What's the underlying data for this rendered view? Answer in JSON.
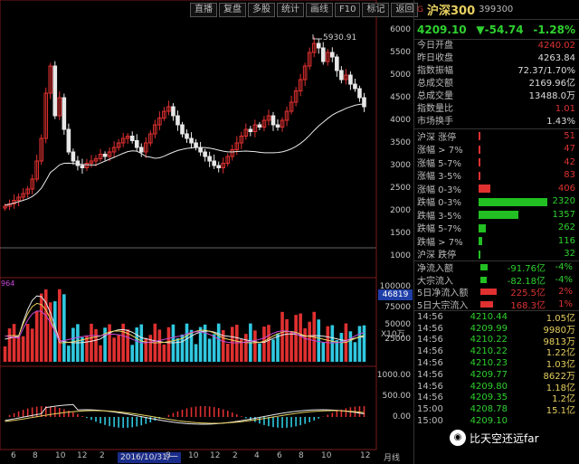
{
  "toolbar": [
    "直播",
    "复盘",
    "多股",
    "统计",
    "画线",
    "F10",
    "标记",
    "返回"
  ],
  "price_axis": [
    "6000",
    "5500",
    "5000",
    "4500",
    "4000",
    "3500",
    "3000",
    "2500",
    "2000",
    "1500",
    "1000"
  ],
  "peak_label": "5930.91",
  "volume": {
    "partial_value": "964",
    "axis": [
      "100000",
      "75000",
      "50000",
      "25000"
    ],
    "marker": "46819",
    "unit": "X10万"
  },
  "macd_axis": [
    "1000.00",
    "500.00",
    "0.00"
  ],
  "x_labels": [
    "6",
    "8",
    "10",
    "12",
    "2",
    "4",
    "6",
    "8",
    "10",
    "12",
    "2",
    "4",
    "6",
    "8",
    "10",
    "12"
  ],
  "date_tag": "2016/10/31/一",
  "period_label": "月线",
  "index": {
    "tag": "G",
    "name": "沪深300",
    "code": "399300",
    "price": "4209.10",
    "change": "▼-54.74",
    "pct": "-1.28%"
  },
  "stats": [
    {
      "label": "今日开盘",
      "value": "4240.02",
      "color": "r"
    },
    {
      "label": "昨日收盘",
      "value": "4263.84",
      "color": "w"
    },
    {
      "label": "指数振幅",
      "value": "72.37/1.70%",
      "color": "w"
    },
    {
      "label": "总成交额",
      "value": "2169.96亿",
      "color": "w"
    },
    {
      "label": "总成交量",
      "value": "13488.0万",
      "color": "w"
    },
    {
      "label": "指数量比",
      "value": "1.01",
      "color": "r"
    },
    {
      "label": "市场换手",
      "value": "1.43%",
      "color": "w"
    }
  ],
  "breadth": [
    {
      "label": "沪深 涨停",
      "value": "51",
      "color": "r",
      "frac": 0.004
    },
    {
      "label": "涨幅 > 7%",
      "value": "47",
      "color": "r",
      "frac": 0.004
    },
    {
      "label": "涨幅 5-7%",
      "value": "42",
      "color": "r",
      "frac": 0.004
    },
    {
      "label": "涨幅 3-5%",
      "value": "83",
      "color": "r",
      "frac": 0.03
    },
    {
      "label": "涨幅 0-3%",
      "value": "406",
      "color": "r",
      "frac": 0.17
    },
    {
      "label": "跌幅 0-3%",
      "value": "2320",
      "color": "gr",
      "frac": 1.0
    },
    {
      "label": "跌幅 3-5%",
      "value": "1357",
      "color": "gr",
      "frac": 0.58
    },
    {
      "label": "跌幅 5-7%",
      "value": "262",
      "color": "gr",
      "frac": 0.11
    },
    {
      "label": "跌幅 > 7%",
      "value": "116",
      "color": "gr",
      "frac": 0.05
    },
    {
      "label": "沪深 跌停",
      "value": "32",
      "color": "gr",
      "frac": 0.01
    }
  ],
  "flows": [
    {
      "label": "净流入额",
      "value": "-91.76亿",
      "pct": "-4%",
      "color": "gr",
      "frac": 0.4
    },
    {
      "label": "大宗流入",
      "value": "-82.18亿",
      "pct": "-4%",
      "color": "gr",
      "frac": 0.36
    },
    {
      "label": "5日净流入额",
      "value": "225.5亿",
      "pct": "2%",
      "color": "r",
      "frac": 0.9
    },
    {
      "label": "5日大宗流入",
      "value": "168.3亿",
      "pct": "1%",
      "color": "r",
      "frac": 0.7
    }
  ],
  "ticks": [
    {
      "time": "14:56",
      "price": "4210.44",
      "qty": "1.05亿",
      "color": "gr"
    },
    {
      "time": "14:56",
      "price": "4209.99",
      "qty": "9980万",
      "color": "gr"
    },
    {
      "time": "14:56",
      "price": "4210.22",
      "qty": "9813万",
      "color": "gr"
    },
    {
      "time": "14:56",
      "price": "4210.22",
      "qty": "1.22亿",
      "color": "gr"
    },
    {
      "time": "14:56",
      "price": "4210.23",
      "qty": "1.03亿",
      "color": "gr"
    },
    {
      "time": "14:56",
      "price": "4209.77",
      "qty": "8622万",
      "color": "gr"
    },
    {
      "time": "14:56",
      "price": "4209.80",
      "qty": "1.18亿",
      "color": "gr"
    },
    {
      "time": "14:56",
      "price": "4209.35",
      "qty": "1.2亿",
      "color": "gr"
    },
    {
      "time": "15:00",
      "price": "4208.78",
      "qty": "15.1亿",
      "color": "gr"
    },
    {
      "time": "15:00",
      "price": "4209.10",
      "qty": "",
      "color": "gr"
    }
  ],
  "watermark": {
    "text": "比天空还远far",
    "icon": "wechat-icon"
  },
  "colors": {
    "up": "#e03030",
    "down": "#30c8e0",
    "ma": "#e8e8e8",
    "vol_ma1": "#e8e8e8",
    "vol_ma2": "#e8d060",
    "vol_ma3": "#c84ad8",
    "macd_neg": "#30c8e0",
    "macd_pos": "#e03030"
  }
}
